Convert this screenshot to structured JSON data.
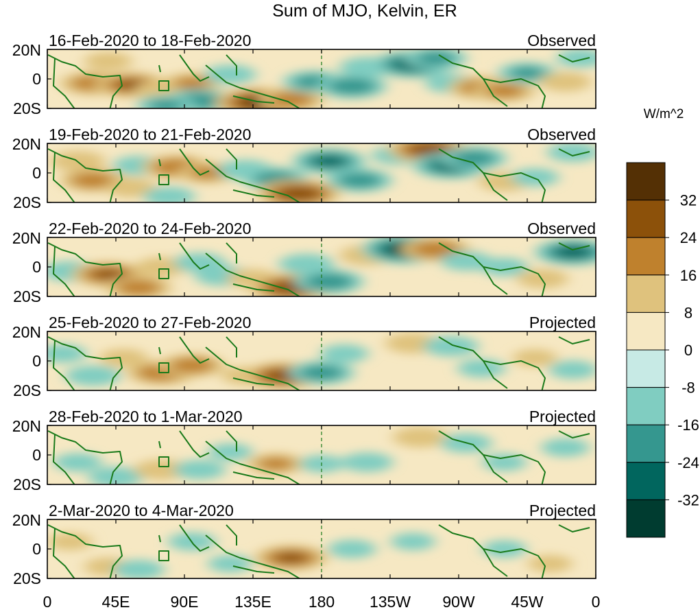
{
  "chart_data": {
    "type": "heatmap",
    "title": "Sum of MJO, Kelvin, ER",
    "colorbar": {
      "label": "W/m^2",
      "ticks": [
        "32",
        "24",
        "16",
        "8",
        "0",
        "-8",
        "-16",
        "-24",
        "-32"
      ],
      "levels": [
        -40,
        -32,
        -24,
        -16,
        -8,
        0,
        8,
        16,
        24,
        32,
        40
      ],
      "colors_low_to_high": [
        "#003c30",
        "#01665e",
        "#35978f",
        "#80cdc1",
        "#c7eae5",
        "#f6e8c3",
        "#dfc27d",
        "#bf812d",
        "#8c510a",
        "#543005"
      ]
    },
    "x_ticks": [
      "0",
      "45E",
      "90E",
      "135E",
      "180",
      "135W",
      "90W",
      "45W",
      "0"
    ],
    "x_range_deg_east": [
      0,
      360
    ],
    "y_ticks": [
      "20N",
      "0",
      "20S"
    ],
    "y_range_deg": [
      -20,
      20
    ],
    "dateline_deg": 180,
    "panels": [
      {
        "period": "16-Feb-2020 to 18-Feb-2020",
        "status": "Observed",
        "anomalies": [
          {
            "lon": 30,
            "lat": -3,
            "v": 20
          },
          {
            "lon": 55,
            "lat": -4,
            "v": 24
          },
          {
            "lon": 40,
            "lat": 12,
            "v": 10
          },
          {
            "lon": 75,
            "lat": -8,
            "v": 14
          },
          {
            "lon": 95,
            "lat": -3,
            "v": 16
          },
          {
            "lon": 100,
            "lat": -15,
            "v": -22
          },
          {
            "lon": 78,
            "lat": -18,
            "v": -16
          },
          {
            "lon": 140,
            "lat": -16,
            "v": 34
          },
          {
            "lon": 160,
            "lat": -14,
            "v": 20
          },
          {
            "lon": 120,
            "lat": 3,
            "v": -12
          },
          {
            "lon": 175,
            "lat": -2,
            "v": -18
          },
          {
            "lon": 200,
            "lat": -5,
            "v": -22
          },
          {
            "lon": 210,
            "lat": 8,
            "v": -14
          },
          {
            "lon": 240,
            "lat": 10,
            "v": -28
          },
          {
            "lon": 255,
            "lat": 14,
            "v": -18
          },
          {
            "lon": 265,
            "lat": -3,
            "v": -12
          },
          {
            "lon": 285,
            "lat": -6,
            "v": 20
          },
          {
            "lon": 300,
            "lat": -8,
            "v": 18
          },
          {
            "lon": 315,
            "lat": 4,
            "v": -16
          },
          {
            "lon": 340,
            "lat": -2,
            "v": 12
          },
          {
            "lon": 350,
            "lat": 14,
            "v": -10
          }
        ]
      },
      {
        "period": "19-Feb-2020 to 21-Feb-2020",
        "status": "Observed",
        "anomalies": [
          {
            "lon": 20,
            "lat": 8,
            "v": 14
          },
          {
            "lon": 30,
            "lat": -5,
            "v": 20
          },
          {
            "lon": 55,
            "lat": -10,
            "v": 12
          },
          {
            "lon": 60,
            "lat": 5,
            "v": -12
          },
          {
            "lon": 85,
            "lat": 4,
            "v": 22
          },
          {
            "lon": 105,
            "lat": 0,
            "v": 16
          },
          {
            "lon": 80,
            "lat": -16,
            "v": -12
          },
          {
            "lon": 130,
            "lat": 2,
            "v": -14
          },
          {
            "lon": 150,
            "lat": -4,
            "v": -20
          },
          {
            "lon": 165,
            "lat": -14,
            "v": 30
          },
          {
            "lon": 185,
            "lat": 8,
            "v": -24
          },
          {
            "lon": 205,
            "lat": -5,
            "v": -20
          },
          {
            "lon": 230,
            "lat": 12,
            "v": -12
          },
          {
            "lon": 250,
            "lat": 16,
            "v": 28
          },
          {
            "lon": 265,
            "lat": 5,
            "v": -26
          },
          {
            "lon": 280,
            "lat": 10,
            "v": -20
          },
          {
            "lon": 300,
            "lat": -6,
            "v": 12
          },
          {
            "lon": 320,
            "lat": -3,
            "v": -10
          },
          {
            "lon": 345,
            "lat": 14,
            "v": -12
          }
        ]
      },
      {
        "period": "22-Feb-2020 to 24-Feb-2020",
        "status": "Observed",
        "anomalies": [
          {
            "lon": 15,
            "lat": -3,
            "v": -14
          },
          {
            "lon": 40,
            "lat": -5,
            "v": 24
          },
          {
            "lon": 60,
            "lat": -14,
            "v": 20
          },
          {
            "lon": 75,
            "lat": 0,
            "v": 12
          },
          {
            "lon": 100,
            "lat": 3,
            "v": -12
          },
          {
            "lon": 115,
            "lat": -6,
            "v": -14
          },
          {
            "lon": 135,
            "lat": -8,
            "v": 12
          },
          {
            "lon": 160,
            "lat": -14,
            "v": 30
          },
          {
            "lon": 185,
            "lat": -10,
            "v": -22
          },
          {
            "lon": 170,
            "lat": 2,
            "v": -14
          },
          {
            "lon": 210,
            "lat": 8,
            "v": 14
          },
          {
            "lon": 235,
            "lat": 12,
            "v": -32
          },
          {
            "lon": 255,
            "lat": 12,
            "v": 22
          },
          {
            "lon": 275,
            "lat": 4,
            "v": -12
          },
          {
            "lon": 300,
            "lat": 0,
            "v": -10
          },
          {
            "lon": 325,
            "lat": -8,
            "v": 12
          },
          {
            "lon": 345,
            "lat": 10,
            "v": -26
          }
        ]
      },
      {
        "period": "25-Feb-2020 to 27-Feb-2020",
        "status": "Projected",
        "anomalies": [
          {
            "lon": 10,
            "lat": 5,
            "v": -10
          },
          {
            "lon": 30,
            "lat": -10,
            "v": -14
          },
          {
            "lon": 50,
            "lat": 2,
            "v": 10
          },
          {
            "lon": 75,
            "lat": -8,
            "v": 22
          },
          {
            "lon": 95,
            "lat": -3,
            "v": 20
          },
          {
            "lon": 130,
            "lat": -10,
            "v": 10
          },
          {
            "lon": 155,
            "lat": -10,
            "v": 28
          },
          {
            "lon": 180,
            "lat": -8,
            "v": -20
          },
          {
            "lon": 195,
            "lat": 5,
            "v": -10
          },
          {
            "lon": 240,
            "lat": 12,
            "v": 14
          },
          {
            "lon": 265,
            "lat": 10,
            "v": -14
          },
          {
            "lon": 285,
            "lat": -5,
            "v": -10
          },
          {
            "lon": 320,
            "lat": 2,
            "v": 8
          },
          {
            "lon": 345,
            "lat": -6,
            "v": -10
          }
        ]
      },
      {
        "period": "28-Feb-2020 to 1-Mar-2020",
        "status": "Projected",
        "anomalies": [
          {
            "lon": 20,
            "lat": -5,
            "v": -10
          },
          {
            "lon": 45,
            "lat": -15,
            "v": -14
          },
          {
            "lon": 75,
            "lat": -10,
            "v": 14
          },
          {
            "lon": 100,
            "lat": -10,
            "v": -12
          },
          {
            "lon": 120,
            "lat": 2,
            "v": -8
          },
          {
            "lon": 150,
            "lat": -6,
            "v": 16
          },
          {
            "lon": 180,
            "lat": -6,
            "v": -8
          },
          {
            "lon": 210,
            "lat": -5,
            "v": -12
          },
          {
            "lon": 245,
            "lat": 12,
            "v": 14
          },
          {
            "lon": 275,
            "lat": 8,
            "v": -12
          },
          {
            "lon": 300,
            "lat": -5,
            "v": -8
          },
          {
            "lon": 340,
            "lat": 5,
            "v": -10
          }
        ]
      },
      {
        "period": "2-Mar-2020 to 4-Mar-2020",
        "status": "Projected",
        "anomalies": [
          {
            "lon": 15,
            "lat": 5,
            "v": 8
          },
          {
            "lon": 40,
            "lat": -12,
            "v": 10
          },
          {
            "lon": 60,
            "lat": -14,
            "v": -12
          },
          {
            "lon": 95,
            "lat": 5,
            "v": -10
          },
          {
            "lon": 120,
            "lat": -10,
            "v": -8
          },
          {
            "lon": 160,
            "lat": -6,
            "v": 24
          },
          {
            "lon": 200,
            "lat": 0,
            "v": -10
          },
          {
            "lon": 240,
            "lat": 5,
            "v": -8
          },
          {
            "lon": 300,
            "lat": 0,
            "v": -8
          },
          {
            "lon": 330,
            "lat": -10,
            "v": 8
          }
        ]
      }
    ]
  }
}
